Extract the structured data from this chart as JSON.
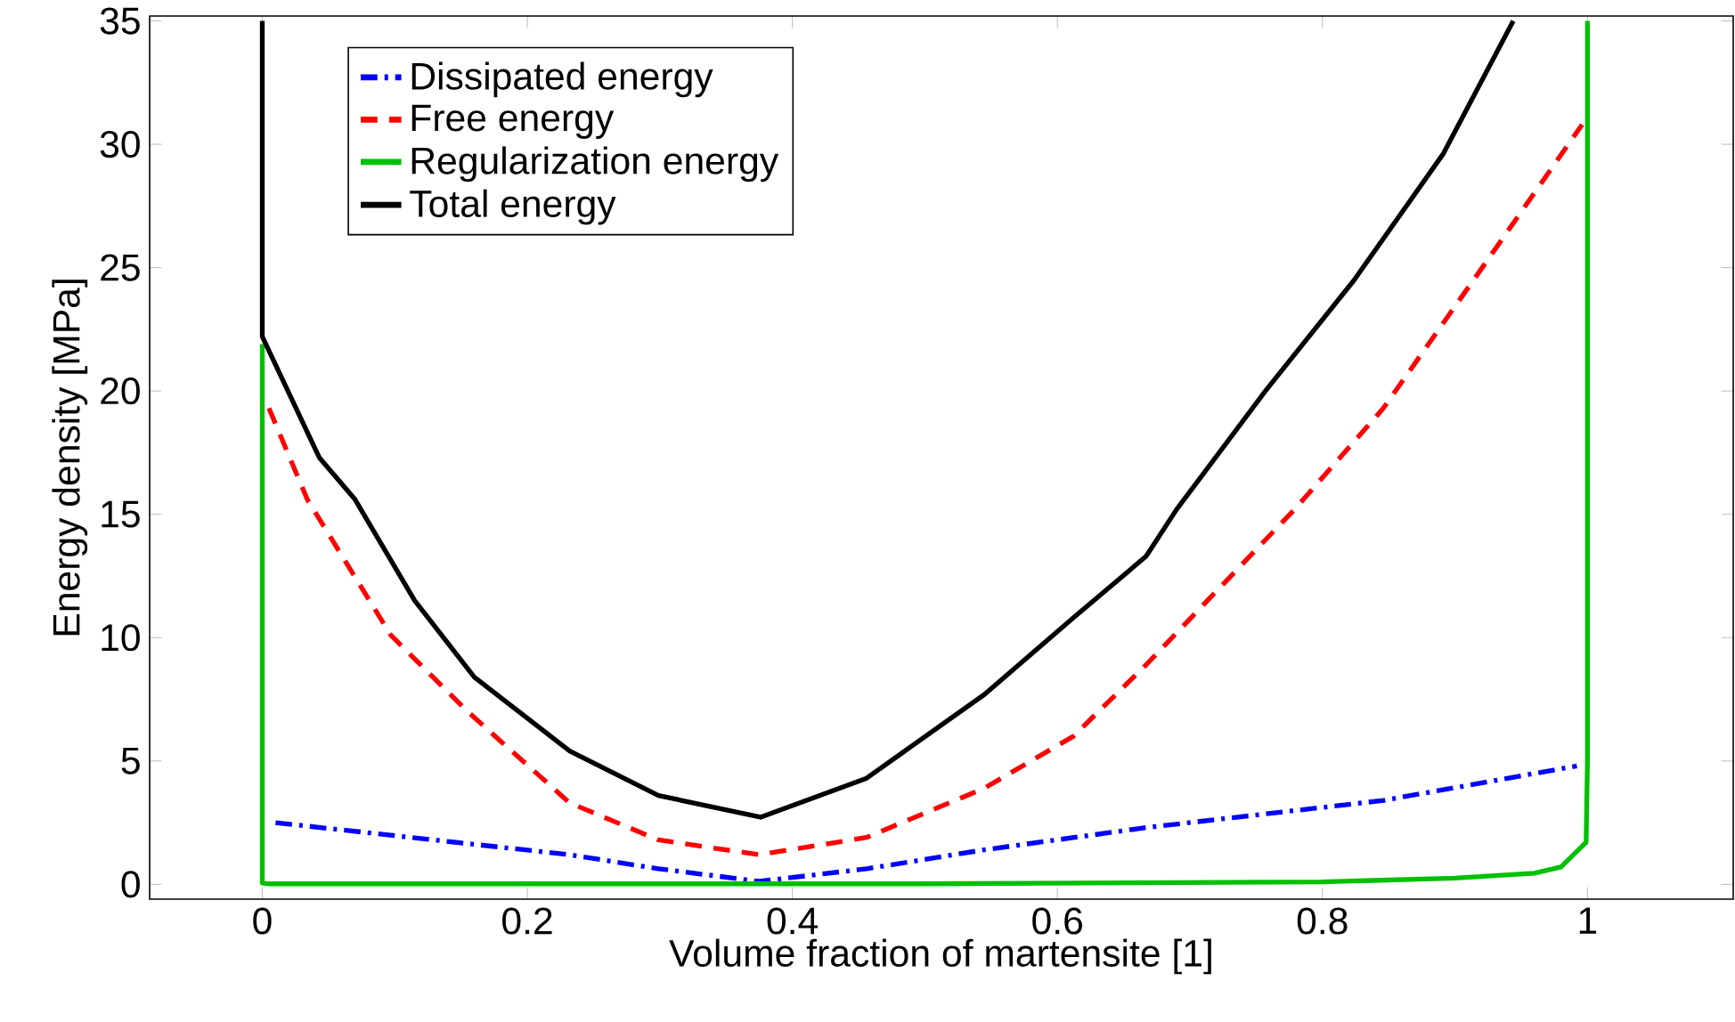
{
  "chart_data": {
    "type": "line",
    "xlabel": "Volume fraction of martensite [1]",
    "ylabel": "Energy density [MPa]",
    "xlim": [
      -0.085,
      1.11
    ],
    "ylim": [
      -0.6,
      35.2
    ],
    "xticks": [
      0,
      0.2,
      0.4,
      0.6,
      0.8,
      1
    ],
    "yticks": [
      0,
      5,
      10,
      15,
      20,
      25,
      30,
      35
    ],
    "legend": "top left",
    "grid": false,
    "series": [
      {
        "name": "Dissipated energy",
        "color": "#0000ff",
        "line_style": "dashdot",
        "x": [
          0.01,
          0.232,
          0.299,
          0.375,
          0.456,
          0.545,
          0.667,
          0.846,
          0.992
        ],
        "values": [
          2.5,
          1.2,
          0.63,
          0.12,
          0.63,
          1.4,
          2.3,
          3.4,
          4.8
        ]
      },
      {
        "name": "Free energy",
        "color": "#ff0000",
        "line_style": "dashed",
        "x": [
          0.005,
          0.034,
          0.097,
          0.155,
          0.232,
          0.299,
          0.375,
          0.456,
          0.545,
          0.612,
          0.667,
          0.779,
          0.846,
          0.918,
          0.996
        ],
        "values": [
          19.3,
          15.6,
          10.1,
          7.0,
          3.3,
          1.8,
          1.2,
          1.9,
          3.9,
          6.0,
          8.9,
          15.2,
          19.3,
          24.8,
          30.8
        ]
      },
      {
        "name": "Regularization energy",
        "color": "#00c000",
        "line_style": "solid",
        "x": [
          0,
          0,
          0.005,
          0.5,
          0.8,
          0.9,
          0.96,
          0.98,
          0.999,
          1,
          1
        ],
        "values": [
          21.9,
          0.05,
          0.02,
          0.02,
          0.1,
          0.25,
          0.45,
          0.7,
          1.7,
          5,
          35
        ]
      },
      {
        "name": "Total energy",
        "color": "#000000",
        "line_style": "solid",
        "x": [
          0,
          0,
          0.043,
          0.07,
          0.115,
          0.16,
          0.232,
          0.299,
          0.376,
          0.456,
          0.545,
          0.612,
          0.667,
          0.69,
          0.757,
          0.824,
          0.891,
          0.944
        ],
        "values": [
          35,
          22.2,
          17.3,
          15.6,
          11.5,
          8.4,
          5.4,
          3.6,
          2.72,
          4.3,
          7.7,
          10.8,
          13.3,
          15.2,
          20.0,
          24.5,
          29.6,
          35
        ]
      }
    ]
  }
}
